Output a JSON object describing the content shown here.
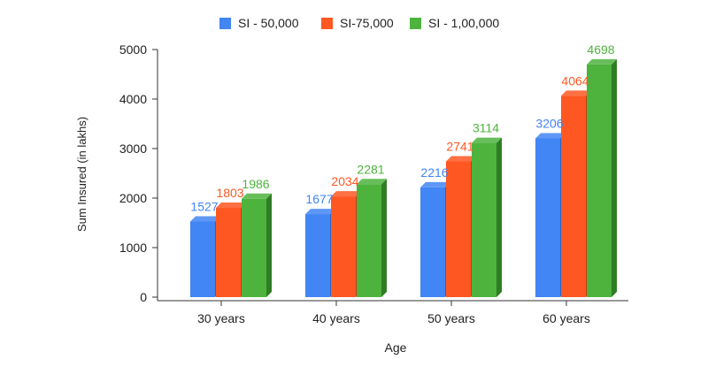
{
  "chart_data": {
    "type": "bar",
    "style": "3d-clustered",
    "categories": [
      "30 years",
      "40 years",
      "50 years",
      "60 years"
    ],
    "series": [
      {
        "name": "SI - 50,000",
        "values": [
          1527,
          1677,
          2216,
          3206
        ],
        "color": "#4285f4",
        "shade": "#2f63b8"
      },
      {
        "name": "SI-75,000",
        "values": [
          1803,
          2034,
          2741,
          4064
        ],
        "color": "#ff5722",
        "shade": "#c23b12"
      },
      {
        "name": "SI - 1,00,000",
        "values": [
          1986,
          2281,
          3114,
          4698
        ],
        "color": "#4db33d",
        "shade": "#2f7d24"
      }
    ],
    "yticks": [
      "0",
      "1000",
      "2000",
      "3000",
      "4000",
      "5000"
    ],
    "xlabel": "Age",
    "ylabel": "Sum Insured (in lakhs)",
    "ylim": [
      0,
      5000
    ],
    "grid": false,
    "legend_position": "top-center"
  }
}
